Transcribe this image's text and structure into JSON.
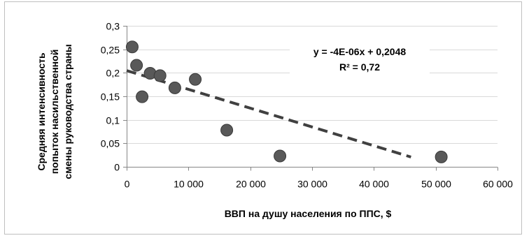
{
  "chart_data": {
    "type": "scatter",
    "xlabel": "ВВП на душу населения по ППС, $",
    "ylabel_lines": [
      "Средняя интенсивность",
      "попыток насильственной",
      "смены руководства страны"
    ],
    "xlim": [
      0,
      60000
    ],
    "ylim": [
      0,
      0.3
    ],
    "x_ticks": [
      0,
      10000,
      20000,
      30000,
      40000,
      50000,
      60000
    ],
    "x_tick_labels": [
      "0",
      "10 000",
      "20 000",
      "30 000",
      "40 000",
      "50 000",
      "60 000"
    ],
    "y_ticks": [
      0,
      0.05,
      0.1,
      0.15,
      0.2,
      0.25,
      0.3
    ],
    "y_tick_labels": [
      "0",
      "0,05",
      "0,1",
      "0,15",
      "0,2",
      "0,25",
      "0,3"
    ],
    "grid": "horizontal",
    "points": [
      {
        "x": 900,
        "y": 0.255
      },
      {
        "x": 1600,
        "y": 0.216
      },
      {
        "x": 2500,
        "y": 0.149
      },
      {
        "x": 3800,
        "y": 0.199
      },
      {
        "x": 5400,
        "y": 0.194
      },
      {
        "x": 7800,
        "y": 0.168
      },
      {
        "x": 11100,
        "y": 0.186
      },
      {
        "x": 16200,
        "y": 0.078
      },
      {
        "x": 24800,
        "y": 0.023
      },
      {
        "x": 50900,
        "y": 0.021
      }
    ],
    "trendline": {
      "slope": -4e-06,
      "intercept": 0.2048,
      "x_range": [
        0,
        46000
      ],
      "style": "dashed"
    },
    "annotations": [
      "y = -4E-06x + 0,2048",
      "R² = 0,72"
    ],
    "colors": {
      "marker_fill": "#595959",
      "marker_stroke": "#3a3a3a",
      "trendline": "#404040",
      "gridline": "#d9d9d9",
      "axis": "#868686"
    }
  }
}
